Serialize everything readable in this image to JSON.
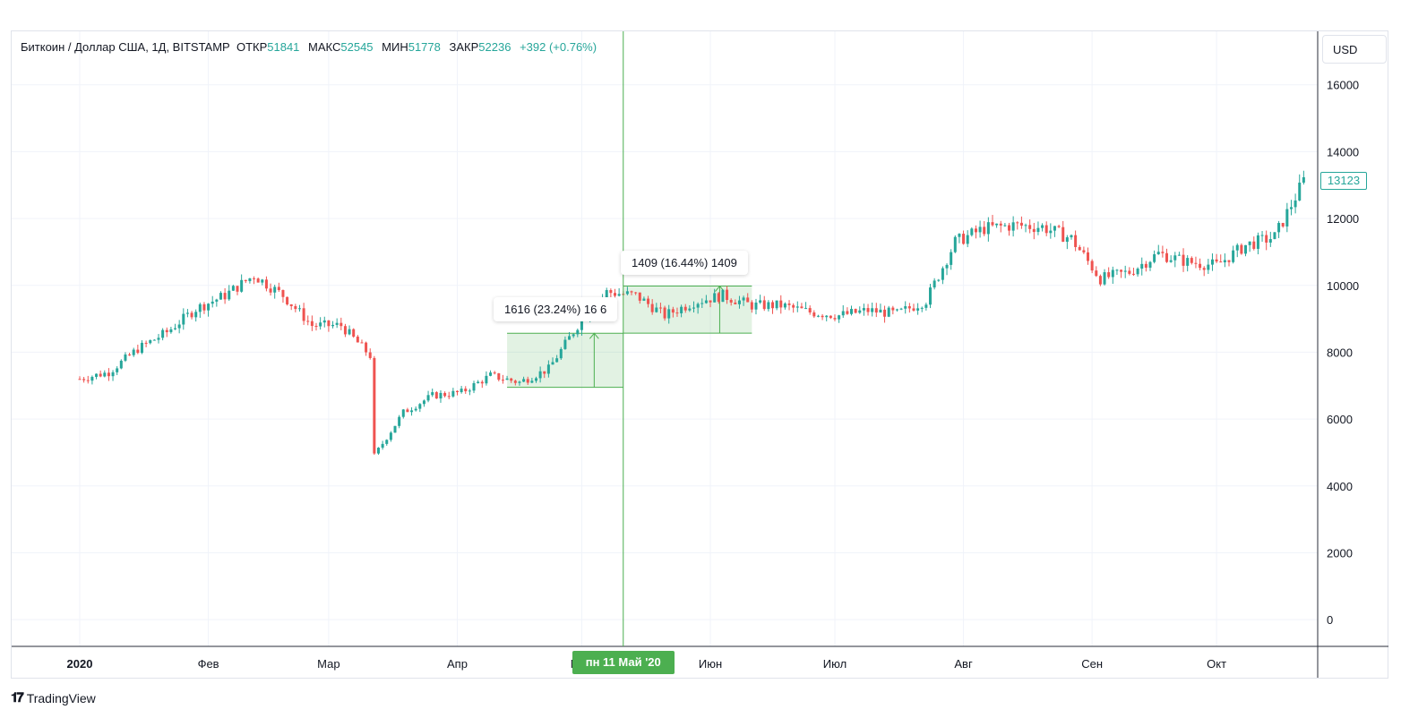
{
  "legend": {
    "symbol": "Биткоин / Доллар США, 1Д, BITSTAMP",
    "open_label": "ОТКР",
    "open_value": "51841",
    "high_label": "МАКС",
    "high_value": "52545",
    "low_label": "МИН",
    "low_value": "51778",
    "close_label": "ЗАКР",
    "close_value": "52236",
    "change": "+392 (+0.76%)"
  },
  "currency": "USD",
  "last_price": "13123",
  "crosshair_date": "пн 11 Май '20",
  "brand": "TradingView",
  "colors": {
    "up": "#26a69a",
    "down": "#ef5350",
    "measure": "#4caf50",
    "grid": "#f0f3fa"
  },
  "measures": [
    {
      "label": "1616 (23.24%) 16 6",
      "from_date": "2020-04-13",
      "to_date": "2020-05-11",
      "low": 6950,
      "high": 8566
    },
    {
      "label": "1409 (16.44%) 1409",
      "from_date": "2020-05-11",
      "to_date": "2020-06-11",
      "low": 8570,
      "high": 9979
    }
  ],
  "chart_data": {
    "type": "candlestick",
    "y_ticks": [
      "16000",
      "14000",
      "12000",
      "10000",
      "8000",
      "6000",
      "4000",
      "2000",
      "0"
    ],
    "x_ticks": [
      "2020",
      "Фев",
      "Мар",
      "Апр",
      "Май",
      "Июн",
      "Июл",
      "Авг",
      "Сен",
      "Окт"
    ],
    "ylim": [
      -800,
      17600
    ],
    "x_range": [
      "2020-01-01",
      "2020-10-23"
    ],
    "series": [
      {
        "name": "",
        "x": [
          "2020-01-01",
          "2020-01-08",
          "2020-01-15",
          "2020-01-22",
          "2020-01-29",
          "2020-02-05",
          "2020-02-12",
          "2020-02-19",
          "2020-02-26",
          "2020-03-04",
          "2020-03-11",
          "2020-03-12",
          "2020-03-19",
          "2020-03-26",
          "2020-04-02",
          "2020-04-09",
          "2020-04-16",
          "2020-04-23",
          "2020-04-30",
          "2020-05-07",
          "2020-05-14",
          "2020-05-21",
          "2020-05-28",
          "2020-06-04",
          "2020-06-11",
          "2020-06-18",
          "2020-06-25",
          "2020-07-02",
          "2020-07-09",
          "2020-07-16",
          "2020-07-23",
          "2020-07-30",
          "2020-08-06",
          "2020-08-13",
          "2020-08-20",
          "2020-08-27",
          "2020-09-03",
          "2020-09-10",
          "2020-09-17",
          "2020-09-24",
          "2020-10-01",
          "2020-10-08",
          "2020-10-15",
          "2020-10-22"
        ],
        "values": [
          7200,
          7400,
          8100,
          8600,
          9300,
          9700,
          10300,
          9700,
          8800,
          8800,
          7900,
          4900,
          6200,
          6700,
          6800,
          7300,
          7100,
          7500,
          8800,
          9800,
          9700,
          9100,
          9500,
          9700,
          9400,
          9400,
          9200,
          9100,
          9250,
          9150,
          9550,
          11300,
          11700,
          11800,
          11750,
          11400,
          10200,
          10400,
          10950,
          10700,
          10600,
          11200,
          11450,
          13123
        ]
      }
    ]
  }
}
